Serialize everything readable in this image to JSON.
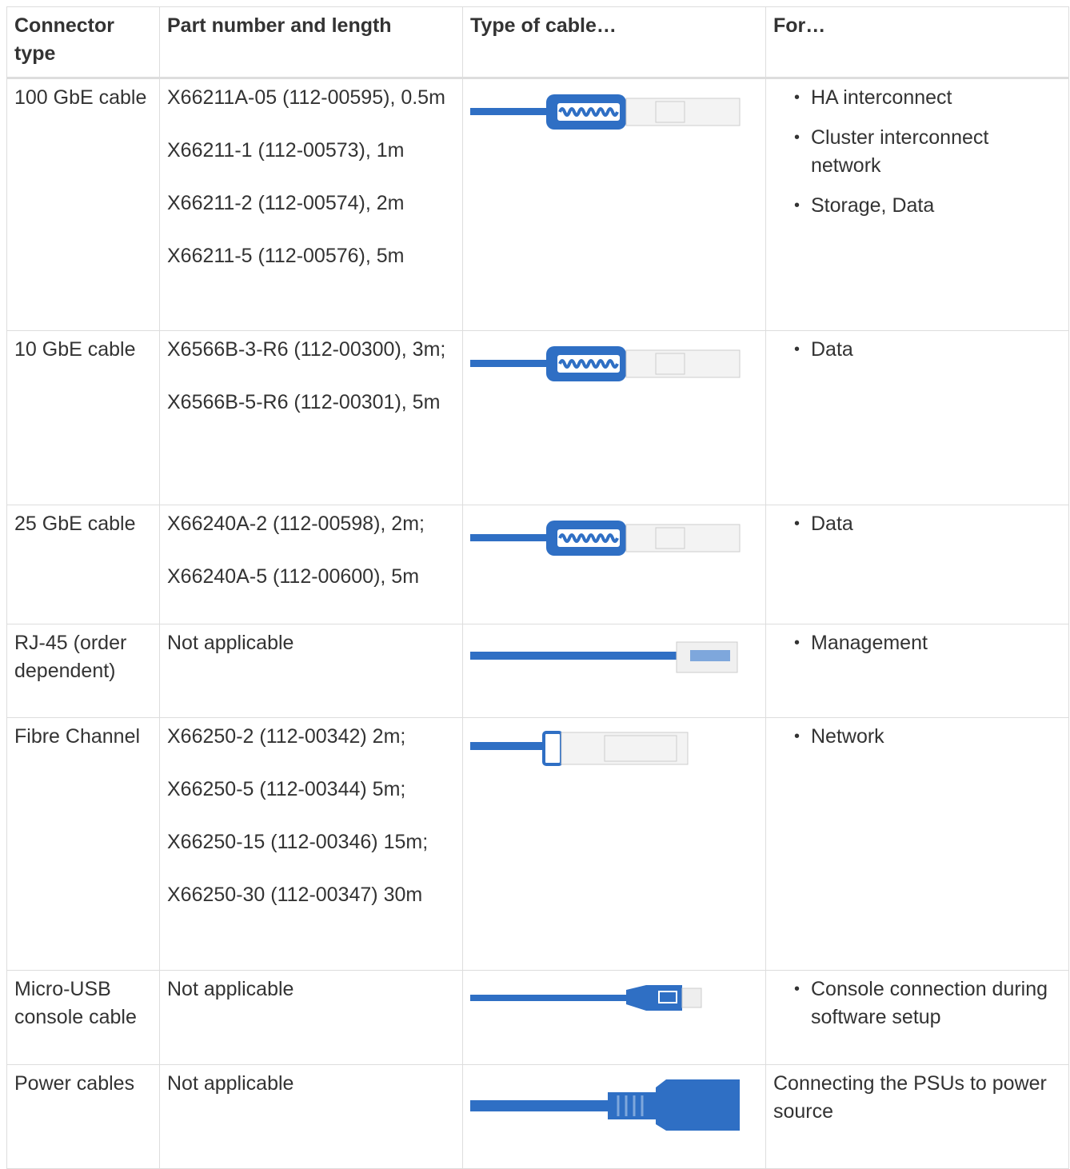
{
  "table": {
    "header": [
      "Connector type",
      "Part number and length",
      "Type of cable…",
      "For…"
    ],
    "rows": [
      {
        "connector": "100 GbE cable",
        "parts": [
          "X66211A-05 (112-00595), 0.5m",
          "X66211-1 (112-00573), 1m",
          "X66211-2 (112-00574), 2m",
          "X66211-5 (112-00576), 5m"
        ],
        "uses": [
          "HA interconnect",
          "Cluster interconnect network",
          "Storage, Data"
        ]
      },
      {
        "connector": "10 GbE cable",
        "parts": [
          "X6566B-3-R6 (112-00300), 3m;",
          "X6566B-5-R6 (112-00301), 5m"
        ],
        "uses": [
          "Data"
        ]
      },
      {
        "connector": "25 GbE cable",
        "parts": [
          "X66240A-2 (112-00598), 2m;",
          "X66240A-5 (112-00600), 5m"
        ],
        "uses": [
          "Data"
        ]
      },
      {
        "connector": "RJ-45 (order dependent)",
        "parts": [
          "Not applicable"
        ],
        "uses": [
          "Management"
        ]
      },
      {
        "connector": "Fibre Channel",
        "parts": [
          "X66250-2 (112-00342) 2m;",
          "X66250-5 (112-00344) 5m;",
          "X66250-15 (112-00346) 15m;",
          "X66250-30 (112-00347) 30m"
        ],
        "uses": [
          "Network"
        ]
      },
      {
        "connector": "Micro-USB console cable",
        "parts": [
          "Not applicable"
        ],
        "uses": [
          "Console connection during software setup"
        ]
      },
      {
        "connector": "Power cables",
        "parts": [
          "Not applicable"
        ],
        "description": "Connecting the PSUs to power source"
      }
    ]
  }
}
